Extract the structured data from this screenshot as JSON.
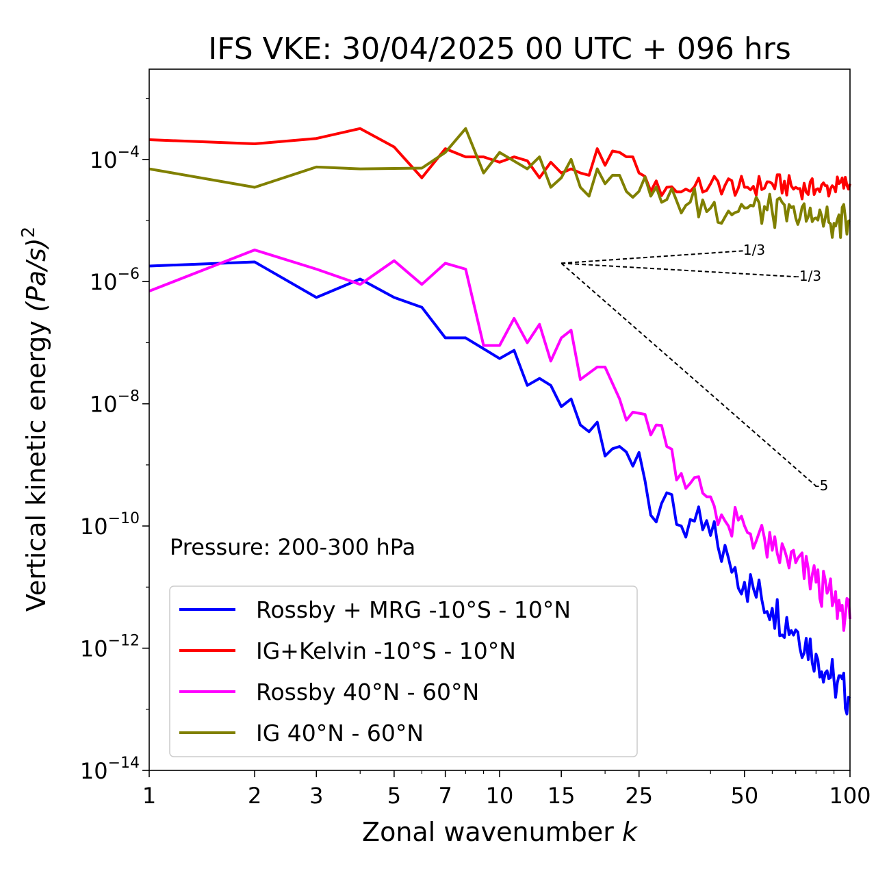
{
  "chart_data": {
    "type": "line",
    "title": "IFS VKE: 30/04/2025 00 UTC + 096 hrs",
    "xlabel": "Zonal wavenumber",
    "xlabel_italic": "k",
    "ylabel": "Vertical kinetic energy",
    "ylabel_unit": "(Pa/s)",
    "ylabel_exp": "2",
    "x_scale": "log",
    "y_scale": "log",
    "xlim": [
      1,
      100
    ],
    "ylim": [
      1e-14,
      0.003
    ],
    "x_ticks": [
      1,
      2,
      3,
      5,
      7,
      10,
      15,
      25,
      50,
      100
    ],
    "x_tick_labels": [
      "1",
      "2",
      "3",
      "5",
      "7",
      "10",
      "15",
      "25",
      "50",
      "100"
    ],
    "y_ticks": [
      {
        "value": 0.0001,
        "base": "10",
        "exp": "−4"
      },
      {
        "value": 1e-06,
        "base": "10",
        "exp": "−6"
      },
      {
        "value": 1e-08,
        "base": "10",
        "exp": "−8"
      },
      {
        "value": 1e-10,
        "base": "10",
        "exp": "−10"
      },
      {
        "value": 1e-12,
        "base": "10",
        "exp": "−12"
      },
      {
        "value": 1e-14,
        "base": "10",
        "exp": "−14"
      }
    ],
    "grid": false,
    "legend_position": "lower-left",
    "annotation": "Pressure: 200-300 hPa",
    "series": [
      {
        "name": "Rossby + MRG -10°S - 10°N",
        "color": "#0000ff",
        "anchors": [
          [
            1,
            1.8e-06
          ],
          [
            2,
            2.1e-06
          ],
          [
            3,
            5.5e-07
          ],
          [
            4,
            1.1e-06
          ],
          [
            5,
            5.5e-07
          ],
          [
            6,
            3.8e-07
          ],
          [
            7,
            1.2e-07
          ],
          [
            8,
            1.2e-07
          ],
          [
            10,
            5.5e-08
          ],
          [
            11,
            7.5e-08
          ],
          [
            12,
            2e-08
          ],
          [
            13,
            2.6e-08
          ],
          [
            14,
            2e-08
          ],
          [
            15,
            9e-09
          ],
          [
            16,
            1.2e-08
          ],
          [
            17,
            4.5e-09
          ],
          [
            18,
            3.5e-09
          ],
          [
            19,
            5e-09
          ],
          [
            20,
            1.4e-09
          ],
          [
            22,
            2e-09
          ],
          [
            25,
            1.6e-09
          ],
          [
            26,
            5.5e-10
          ],
          [
            27,
            1.5e-10
          ],
          [
            30,
            3.5e-10
          ],
          [
            33,
            1e-10
          ],
          [
            36,
            1.2e-10
          ],
          [
            40,
            7e-11
          ],
          [
            45,
            3e-11
          ],
          [
            50,
            1.2e-11
          ],
          [
            60,
            4.5e-12
          ],
          [
            70,
            2e-12
          ],
          [
            80,
            8e-13
          ],
          [
            90,
            3e-13
          ],
          [
            100,
            1.5e-13
          ]
        ],
        "jitter": 0.35
      },
      {
        "name": "IG+Kelvin -10°S - 10°N",
        "color": "#ff0000",
        "anchors": [
          [
            1,
            0.00021
          ],
          [
            2,
            0.00018
          ],
          [
            3,
            0.00022
          ],
          [
            4,
            0.00032
          ],
          [
            5,
            0.00016
          ],
          [
            6,
            5e-05
          ],
          [
            7,
            0.00015
          ],
          [
            8,
            0.00011
          ],
          [
            9,
            0.00011
          ],
          [
            10,
            9e-05
          ],
          [
            11,
            0.00011
          ],
          [
            12,
            9.5e-05
          ],
          [
            13,
            5e-05
          ],
          [
            14,
            9e-05
          ],
          [
            15,
            6e-05
          ],
          [
            16,
            7e-05
          ],
          [
            17,
            6e-05
          ],
          [
            18,
            5.5e-05
          ],
          [
            19,
            0.00015
          ],
          [
            20,
            8e-05
          ],
          [
            22,
            0.00013
          ],
          [
            25,
            6e-05
          ],
          [
            27,
            3e-05
          ],
          [
            30,
            3.5e-05
          ],
          [
            35,
            3e-05
          ],
          [
            40,
            4e-05
          ],
          [
            50,
            3.5e-05
          ],
          [
            60,
            4e-05
          ],
          [
            70,
            3.5e-05
          ],
          [
            80,
            3.2e-05
          ],
          [
            90,
            3.5e-05
          ],
          [
            100,
            4e-05
          ]
        ],
        "jitter": 0.18
      },
      {
        "name": "Rossby 40°N - 60°N",
        "color": "#ff00ff",
        "anchors": [
          [
            1,
            7e-07
          ],
          [
            2,
            3.3e-06
          ],
          [
            3,
            1.6e-06
          ],
          [
            4,
            9e-07
          ],
          [
            5,
            2.2e-06
          ],
          [
            6,
            9e-07
          ],
          [
            7,
            2e-06
          ],
          [
            8,
            1.6e-06
          ],
          [
            9,
            9e-08
          ],
          [
            10,
            9e-08
          ],
          [
            11,
            2.5e-07
          ],
          [
            12,
            1e-07
          ],
          [
            13,
            2e-07
          ],
          [
            14,
            5e-08
          ],
          [
            15,
            1.2e-07
          ],
          [
            16,
            1.6e-07
          ],
          [
            17,
            2.5e-08
          ],
          [
            19,
            4e-08
          ],
          [
            20,
            4e-08
          ],
          [
            22,
            1.2e-08
          ],
          [
            25,
            7e-09
          ],
          [
            28,
            4.5e-09
          ],
          [
            30,
            2e-09
          ],
          [
            35,
            5e-10
          ],
          [
            40,
            3e-10
          ],
          [
            45,
            1e-10
          ],
          [
            50,
            1e-10
          ],
          [
            60,
            4e-11
          ],
          [
            70,
            2.5e-11
          ],
          [
            80,
            1.2e-11
          ],
          [
            90,
            6e-12
          ],
          [
            100,
            3e-12
          ]
        ],
        "jitter": 0.32
      },
      {
        "name": "IG 40°N - 60°N",
        "color": "#808000",
        "anchors": [
          [
            1,
            7e-05
          ],
          [
            2,
            3.5e-05
          ],
          [
            3,
            7.5e-05
          ],
          [
            4,
            7e-05
          ],
          [
            6,
            7.2e-05
          ],
          [
            7,
            0.00013
          ],
          [
            8,
            0.00032
          ],
          [
            9,
            6e-05
          ],
          [
            10,
            0.00013
          ],
          [
            12,
            7e-05
          ],
          [
            13,
            0.00011
          ],
          [
            14,
            3.5e-05
          ],
          [
            15,
            5e-05
          ],
          [
            16,
            0.0001
          ],
          [
            17,
            3.5e-05
          ],
          [
            18,
            2.5e-05
          ],
          [
            19,
            7e-05
          ],
          [
            20,
            4e-05
          ],
          [
            22,
            5.5e-05
          ],
          [
            25,
            3e-05
          ],
          [
            27,
            2.5e-05
          ],
          [
            30,
            2.2e-05
          ],
          [
            35,
            2e-05
          ],
          [
            40,
            1.6e-05
          ],
          [
            50,
            1.6e-05
          ],
          [
            60,
            1.4e-05
          ],
          [
            70,
            1.1e-05
          ],
          [
            80,
            1.1e-05
          ],
          [
            90,
            9e-06
          ],
          [
            100,
            1e-05
          ]
        ],
        "jitter": 0.28
      }
    ],
    "slope_lines": [
      {
        "label": "1/3",
        "from": [
          15,
          2e-06
        ],
        "to": [
          50,
          3.2e-06
        ]
      },
      {
        "label": "-1/3",
        "from": [
          15,
          2e-06
        ],
        "to": [
          70,
          1.2e-06
        ]
      },
      {
        "label": "-5",
        "from": [
          15,
          2e-06
        ],
        "to": [
          80,
          4.5e-10
        ]
      }
    ]
  }
}
